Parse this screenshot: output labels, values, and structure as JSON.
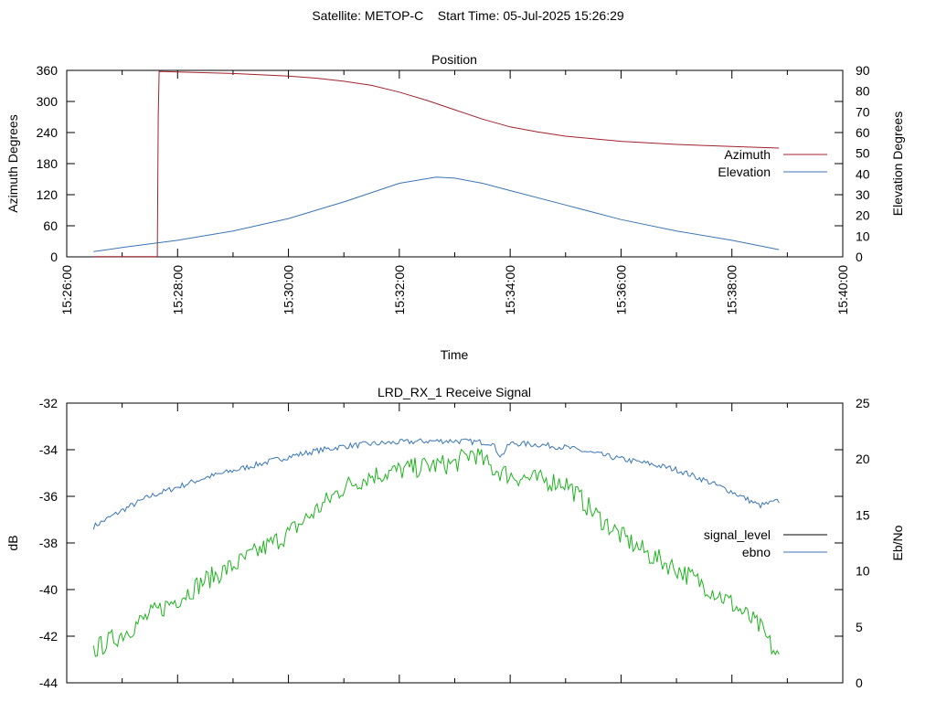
{
  "page_title": "Satellite: METOP-C    Start Time: 05-Jul-2025 15:26:29",
  "chart_data": [
    {
      "type": "line",
      "title": "Position",
      "xlabel": "Time",
      "ylabel": "Azimuth Degrees",
      "y2label": "Elevation Degrees",
      "x_domain": [
        "15:26:00",
        "15:40:00"
      ],
      "x_ticks": [
        "15:26:00",
        "15:28:00",
        "15:30:00",
        "15:32:00",
        "15:34:00",
        "15:36:00",
        "15:38:00",
        "15:40:00"
      ],
      "ylim": [
        0,
        360
      ],
      "y_ticks": [
        "0",
        "60",
        "120",
        "180",
        "240",
        "300",
        "360"
      ],
      "y2lim": [
        0,
        90
      ],
      "y2_ticks": [
        "0",
        "10",
        "20",
        "30",
        "40",
        "50",
        "60",
        "70",
        "80",
        "90"
      ],
      "legend_position": "right",
      "series": [
        {
          "name": "Azimuth",
          "color": "#a0222c",
          "axis": "y",
          "x": [
            "15:26:29",
            "15:27:15",
            "15:27:38",
            "15:27:39",
            "15:27:40",
            "15:28:00",
            "15:29:00",
            "15:30:00",
            "15:30:30",
            "15:31:00",
            "15:31:30",
            "15:32:00",
            "15:32:30",
            "15:33:00",
            "15:33:30",
            "15:34:00",
            "15:34:30",
            "15:35:00",
            "15:36:00",
            "15:37:00",
            "15:38:00",
            "15:38:51"
          ],
          "values": [
            0.5,
            0.5,
            0.5,
            270,
            358,
            357,
            354,
            349,
            345,
            339,
            331,
            318,
            302,
            284,
            266,
            251,
            241,
            233,
            223,
            217,
            213,
            210
          ]
        },
        {
          "name": "Elevation",
          "color": "#3a75b5",
          "axis": "y2",
          "x": [
            "15:26:29",
            "15:27:00",
            "15:28:00",
            "15:29:00",
            "15:30:00",
            "15:31:00",
            "15:32:00",
            "15:32:40",
            "15:33:00",
            "15:33:30",
            "15:34:00",
            "15:35:00",
            "15:36:00",
            "15:37:00",
            "15:38:00",
            "15:38:51"
          ],
          "values": [
            2.5,
            4.5,
            8,
            12.5,
            18.5,
            26.5,
            35.5,
            38.5,
            38,
            35.5,
            32,
            25,
            18,
            12.5,
            8,
            3.5
          ]
        }
      ]
    },
    {
      "type": "line",
      "title": "LRD_RX_1 Receive Signal",
      "ylabel": "dB",
      "y2label": "Eb/No",
      "x_domain": [
        "15:26:00",
        "15:40:00"
      ],
      "ylim": [
        -44,
        -32
      ],
      "y_ticks": [
        "-44",
        "-42",
        "-40",
        "-38",
        "-36",
        "-34",
        "-32"
      ],
      "y2lim": [
        0,
        25
      ],
      "y2_ticks": [
        "0",
        "5",
        "10",
        "15",
        "20",
        "25"
      ],
      "legend_position": "right",
      "series": [
        {
          "name": "signal_level",
          "color": "#000000",
          "legend_only": true,
          "values": []
        },
        {
          "name": "ebno",
          "color": "#3a75b5",
          "axis": "y",
          "x": [
            "15:26:29",
            "15:27:00",
            "15:27:30",
            "15:28:00",
            "15:28:30",
            "15:29:00",
            "15:29:30",
            "15:30:00",
            "15:30:30",
            "15:31:00",
            "15:31:30",
            "15:32:00",
            "15:32:30",
            "15:33:00",
            "15:33:40",
            "15:33:50",
            "15:34:00",
            "15:34:30",
            "15:35:00",
            "15:35:30",
            "15:36:00",
            "15:36:30",
            "15:37:00",
            "15:37:30",
            "15:38:00",
            "15:38:30",
            "15:38:51"
          ],
          "values": [
            -37.3,
            -36.6,
            -36.0,
            -35.6,
            -35.2,
            -34.9,
            -34.6,
            -34.3,
            -34.05,
            -33.85,
            -33.75,
            -33.68,
            -33.63,
            -33.62,
            -33.7,
            -34.3,
            -33.72,
            -33.78,
            -33.9,
            -34.15,
            -34.4,
            -34.6,
            -34.85,
            -35.3,
            -35.8,
            -36.4,
            -36.2
          ]
        },
        {
          "name": "",
          "color": "#1fb31f",
          "axis": "y",
          "x": [
            "15:26:29",
            "15:27:00",
            "15:27:30",
            "15:28:00",
            "15:28:30",
            "15:29:00",
            "15:29:30",
            "15:30:00",
            "15:30:30",
            "15:31:00",
            "15:31:30",
            "15:32:00",
            "15:32:30",
            "15:33:00",
            "15:33:20",
            "15:33:40",
            "15:34:00",
            "15:34:30",
            "15:35:00",
            "15:35:30",
            "15:36:00",
            "15:36:30",
            "15:37:00",
            "15:37:30",
            "15:38:00",
            "15:38:30",
            "15:38:51"
          ],
          "values": [
            -42.6,
            -41.9,
            -41.1,
            -40.4,
            -39.6,
            -39.0,
            -38.3,
            -37.6,
            -36.6,
            -35.6,
            -35.1,
            -34.9,
            -34.7,
            -34.6,
            -34.1,
            -34.8,
            -35.1,
            -35.3,
            -35.4,
            -36.7,
            -37.7,
            -38.5,
            -39.1,
            -39.8,
            -40.6,
            -41.6,
            -43.0
          ]
        }
      ]
    }
  ]
}
